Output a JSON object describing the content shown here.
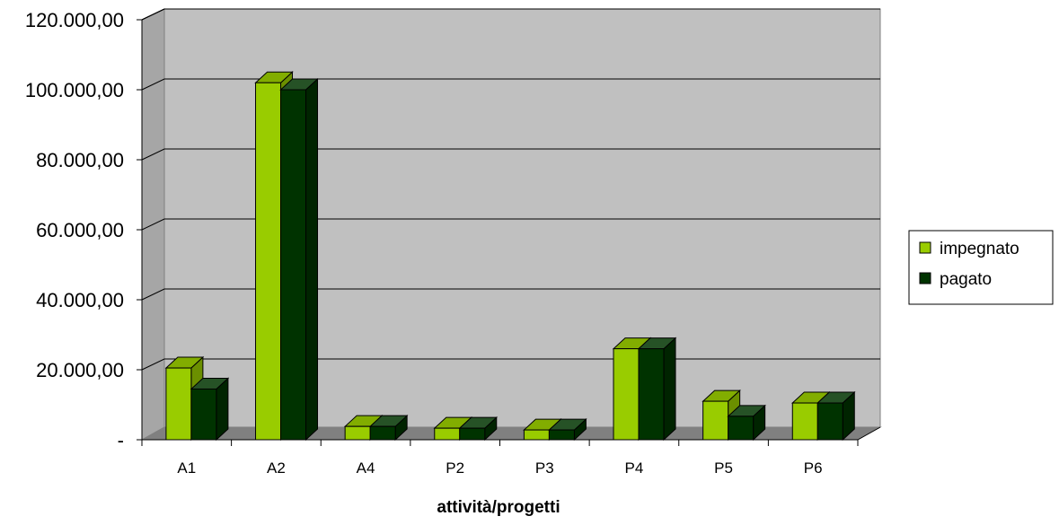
{
  "chart_data": {
    "type": "bar",
    "style": "3d-clustered-column",
    "categories": [
      "A1",
      "A2",
      "A4",
      "P2",
      "P3",
      "P4",
      "P5",
      "P6"
    ],
    "series": [
      {
        "name": "impegnato",
        "color": "#99cc00",
        "values": [
          20500,
          102000,
          3800,
          3300,
          2800,
          26000,
          11000,
          10500
        ]
      },
      {
        "name": "pagato",
        "color": "#003300",
        "values": [
          14500,
          100000,
          3800,
          3300,
          2800,
          26000,
          6700,
          10500
        ]
      }
    ],
    "xlabel": "attività/progetti",
    "ylabel": "",
    "ylim": [
      0,
      120000
    ],
    "yticks": [
      {
        "value": 0,
        "label": "-"
      },
      {
        "value": 20000,
        "label": "20.000,00"
      },
      {
        "value": 40000,
        "label": "40.000,00"
      },
      {
        "value": 60000,
        "label": "60.000,00"
      },
      {
        "value": 80000,
        "label": "80.000,00"
      },
      {
        "value": 100000,
        "label": "100.000,00"
      },
      {
        "value": 120000,
        "label": "120.000,00"
      }
    ],
    "grid": true,
    "legend_position": "right",
    "colors": {
      "wall": "#c0c0c0",
      "floor": "#808080",
      "gridline": "#000000"
    }
  }
}
